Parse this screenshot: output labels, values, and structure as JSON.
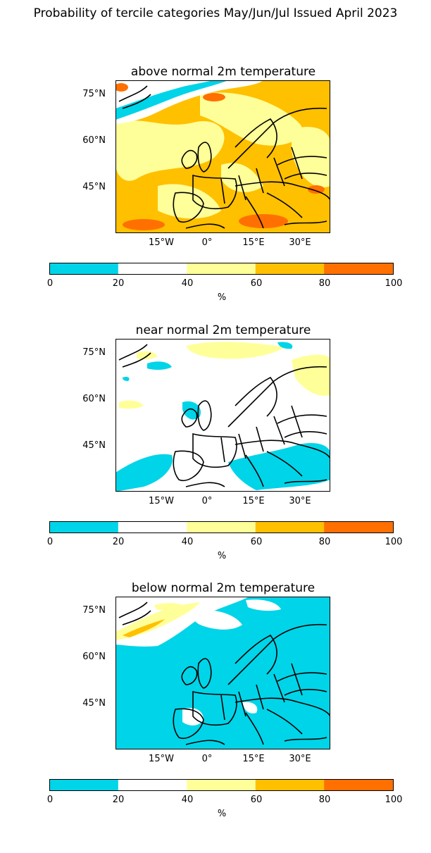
{
  "title": "Probability of tercile categories May/Jun/Jul Issued April 2023",
  "colorbar": {
    "ticks": [
      "0",
      "20",
      "40",
      "60",
      "80",
      "100"
    ],
    "unit": "%",
    "colors": [
      "#00d4e8",
      "#ffffff",
      "#ffff99",
      "#ffc000",
      "#ff7000"
    ]
  },
  "lat_labels": [
    "75°N",
    "60°N",
    "45°N"
  ],
  "lon_labels": [
    "15°W",
    "0°",
    "15°E",
    "30°E"
  ],
  "panels": [
    {
      "title": "above normal 2m temperature",
      "dominant_category": "40-60 / 60-80 %"
    },
    {
      "title": "near normal 2m temperature",
      "dominant_category": "20-40 %"
    },
    {
      "title": "below normal 2m temperature",
      "dominant_category": "0-20 %"
    }
  ]
}
